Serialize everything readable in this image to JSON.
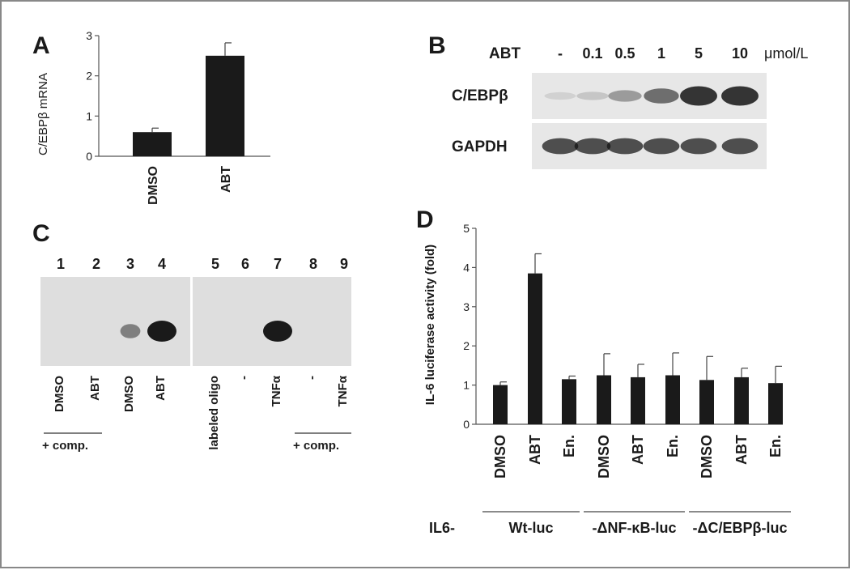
{
  "panels": {
    "a": "A",
    "b": "B",
    "c": "C",
    "d": "D"
  },
  "panel_b": {
    "row_label": "ABT",
    "doses": [
      "-",
      "0.1",
      "0.5",
      "1",
      "5",
      "10"
    ],
    "unit": "μmol/L",
    "blot_rows": [
      "C/EBPβ",
      "GAPDH"
    ],
    "cebpb_band_intensity": [
      0.12,
      0.18,
      0.42,
      0.68,
      1.0,
      1.0
    ],
    "gapdh_band_intensity": [
      0.85,
      0.85,
      0.85,
      0.85,
      0.85,
      0.85
    ]
  },
  "panel_c": {
    "lanes": [
      "1",
      "2",
      "3",
      "4",
      "5",
      "6",
      "7",
      "8",
      "9"
    ],
    "lane_labels": [
      "DMSO",
      "ABT",
      "DMSO",
      "ABT",
      "labeled oligo",
      "-",
      "TNFα",
      "-",
      "TNFα"
    ],
    "comp_label": "+ comp.",
    "band_intensity": [
      0,
      0,
      0.3,
      1.0,
      0,
      0,
      1.0,
      0,
      0
    ]
  },
  "panel_d_groups": {
    "prefix": "IL6-",
    "groups": [
      "Wt-luc",
      "-ΔNF-κB-luc",
      "-ΔC/EBPβ-luc"
    ]
  },
  "chart_data": [
    {
      "type": "bar",
      "panel": "A",
      "categories": [
        "DMSO",
        "ABT"
      ],
      "values": [
        0.6,
        2.5
      ],
      "errors": [
        0.1,
        0.32
      ],
      "ylabel": "C/EBPβ mRNA",
      "ylim": [
        0,
        3
      ],
      "yticks": [
        "0",
        "1",
        "2",
        "3"
      ]
    },
    {
      "type": "bar",
      "panel": "D",
      "categories": [
        "DMSO",
        "ABT",
        "En.",
        "DMSO",
        "ABT",
        "En.",
        "DMSO",
        "ABT",
        "En."
      ],
      "values": [
        1.0,
        3.85,
        1.15,
        1.25,
        1.2,
        1.25,
        1.13,
        1.2,
        1.05
      ],
      "errors": [
        0.08,
        0.5,
        0.08,
        0.55,
        0.33,
        0.57,
        0.6,
        0.23,
        0.43
      ],
      "ylabel": "IL-6 luciferase activity (fold)",
      "ylim": [
        0,
        5
      ],
      "yticks": [
        "0",
        "1",
        "2",
        "3",
        "4",
        "5"
      ]
    }
  ]
}
